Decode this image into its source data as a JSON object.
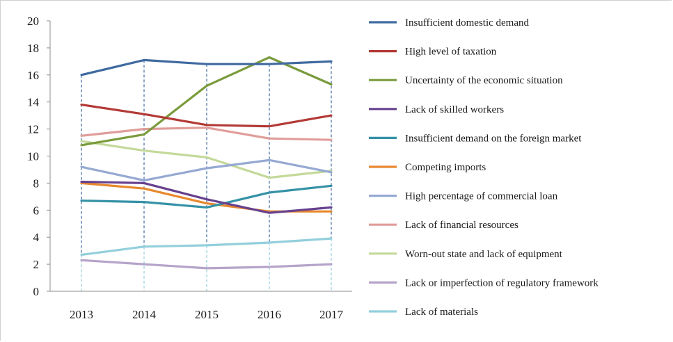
{
  "chart_data": {
    "type": "line",
    "title": "",
    "xlabel": "",
    "ylabel": "",
    "x": [
      "2013",
      "2014",
      "2015",
      "2016",
      "2017"
    ],
    "ylim": [
      0,
      20
    ],
    "yticks": [
      "0",
      "2",
      "4",
      "6",
      "8",
      "10",
      "12",
      "14",
      "16",
      "18",
      "20"
    ],
    "grid": false,
    "legend_position": "right",
    "series": [
      {
        "name": "Insufficient domestic demand",
        "color": "#3f6aa0",
        "values": [
          16.0,
          17.1,
          16.8,
          16.8,
          17.0
        ]
      },
      {
        "name": "High level of taxation",
        "color": "#b33a36",
        "values": [
          13.8,
          13.1,
          12.3,
          12.2,
          13.0
        ]
      },
      {
        "name": "Uncertainty of the economic situation",
        "color": "#7a9b3c",
        "values": [
          10.8,
          11.6,
          15.2,
          17.3,
          15.3
        ]
      },
      {
        "name": "Lack of skilled workers",
        "color": "#67418f",
        "values": [
          8.1,
          8.0,
          6.8,
          5.8,
          6.2
        ]
      },
      {
        "name": "Insufficient demand on the foreign market",
        "color": "#3592a6",
        "values": [
          6.7,
          6.6,
          6.2,
          7.3,
          7.8
        ]
      },
      {
        "name": "Competing imports",
        "color": "#e8882e",
        "values": [
          8.0,
          7.6,
          6.5,
          5.9,
          5.9
        ]
      },
      {
        "name": "High percentage of commercial loan",
        "color": "#95a9d2",
        "values": [
          9.2,
          8.2,
          9.1,
          9.7,
          8.8
        ]
      },
      {
        "name": "Lack of financial resources",
        "color": "#e09d9a",
        "values": [
          11.5,
          12.0,
          12.1,
          11.3,
          11.2
        ]
      },
      {
        "name": "Worn-out state and lack of equipment",
        "color": "#c4d99a",
        "values": [
          11.1,
          10.4,
          9.9,
          8.4,
          8.9
        ]
      },
      {
        "name": "Lack or imperfection of regulatory framework",
        "color": "#b5a4c9",
        "values": [
          2.3,
          2.0,
          1.7,
          1.8,
          2.0
        ]
      },
      {
        "name": "Lack of materials",
        "color": "#93cfdc",
        "values": [
          2.7,
          3.3,
          3.4,
          3.6,
          3.9
        ]
      }
    ]
  }
}
